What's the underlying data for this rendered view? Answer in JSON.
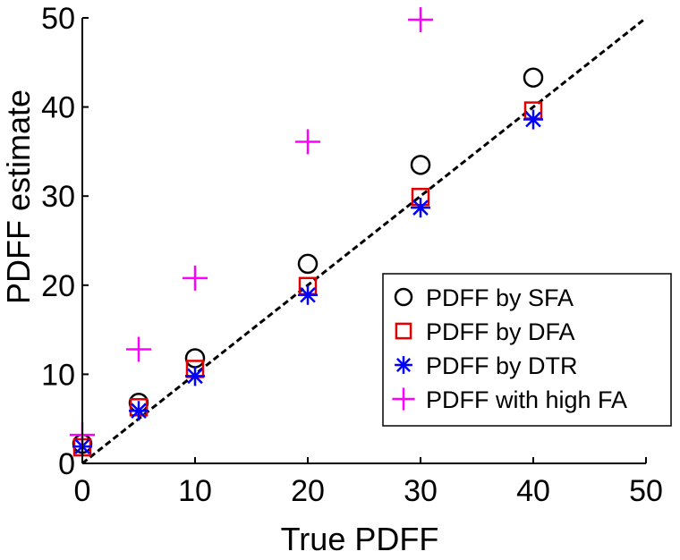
{
  "chart_data": {
    "type": "scatter",
    "title": "",
    "xlabel": "True PDFF",
    "ylabel": "PDFF estimate",
    "xlim": [
      0,
      50
    ],
    "ylim": [
      0,
      50
    ],
    "xticks": [
      "0",
      "10",
      "20",
      "30",
      "40",
      "50"
    ],
    "yticks": [
      "0",
      "10",
      "20",
      "30",
      "40",
      "50"
    ],
    "grid": false,
    "legend_position": "bottom-right",
    "reference_line": {
      "name": "identity",
      "style": "dashed",
      "color": "#000000",
      "x": [
        0,
        50
      ],
      "y": [
        0,
        50
      ]
    },
    "series": [
      {
        "name": "PDFF by SFA",
        "marker": "circle",
        "color": "#000000",
        "x": [
          0,
          5,
          10,
          20,
          30,
          40
        ],
        "y": [
          2.2,
          6.8,
          11.8,
          22.4,
          33.5,
          43.3
        ]
      },
      {
        "name": "PDFF by DFA",
        "marker": "square",
        "color": "#e00000",
        "x": [
          0,
          5,
          10,
          20,
          30,
          40
        ],
        "y": [
          1.8,
          6.3,
          10.6,
          19.9,
          29.9,
          39.6
        ]
      },
      {
        "name": "PDFF by DTR",
        "marker": "asterisk",
        "color": "#0000ff",
        "x": [
          0,
          5,
          10,
          20,
          30,
          40
        ],
        "y": [
          1.9,
          5.9,
          9.8,
          18.9,
          28.7,
          38.6
        ]
      },
      {
        "name": "PDFF with high FA",
        "marker": "plus",
        "color": "#ff00ff",
        "x": [
          0,
          5,
          10,
          20,
          30
        ],
        "y": [
          3.2,
          12.8,
          20.8,
          36.1,
          49.8
        ]
      }
    ]
  }
}
